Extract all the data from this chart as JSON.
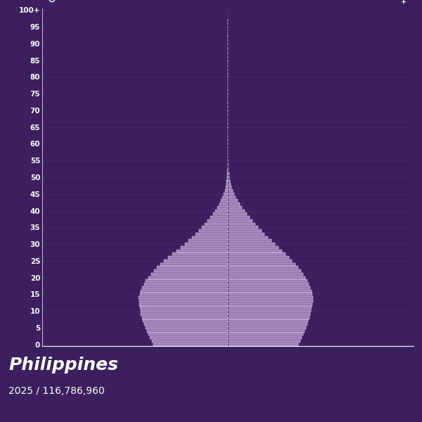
{
  "title": "Philippines",
  "subtitle": "2025 / 116,786,960",
  "bg_color": "#3b1f5e",
  "bar_color": "#9b7bb8",
  "bar_edge_color": "#ffffff",
  "center_line_color": "#4a2a6a",
  "grid_color": "#4a2a6a",
  "text_color": "#ffffff",
  "male_symbol": "♂",
  "female_symbol": "♀",
  "bar_height": 0.82,
  "xlim": 1400000,
  "age_labels": [
    "0",
    "5",
    "10",
    "15",
    "20",
    "25",
    "30",
    "35",
    "40",
    "45",
    "50",
    "55",
    "60",
    "65",
    "70",
    "75",
    "80",
    "85",
    "90",
    "95",
    "100+"
  ],
  "age_tick_positions": [
    0,
    5,
    10,
    15,
    20,
    25,
    30,
    35,
    40,
    45,
    50,
    55,
    60,
    65,
    70,
    75,
    80,
    85,
    90,
    95,
    100
  ],
  "male_values": [
    560000,
    575000,
    590000,
    600000,
    608000,
    620000,
    630000,
    640000,
    648000,
    655000,
    660000,
    665000,
    668000,
    670000,
    672000,
    665000,
    655000,
    645000,
    632000,
    618000,
    600000,
    580000,
    558000,
    534000,
    508000,
    480000,
    450000,
    420000,
    388000,
    355000,
    325000,
    297000,
    270000,
    244000,
    218000,
    195000,
    173000,
    152000,
    132000,
    113000,
    95000,
    79000,
    64000,
    51000,
    40000,
    31000,
    23000,
    17000,
    12000,
    8500,
    6000,
    4100,
    2800,
    1900,
    1300,
    900,
    620,
    430,
    300,
    210,
    150,
    105,
    74,
    52,
    37,
    27,
    20,
    15,
    11,
    8,
    6,
    4,
    3,
    2,
    2,
    1,
    1,
    1,
    1,
    1,
    1,
    1,
    1,
    1,
    1,
    1,
    1,
    1,
    1,
    1,
    1,
    1,
    1,
    1,
    1,
    1,
    1,
    1
  ],
  "female_values": [
    530000,
    545000,
    558000,
    570000,
    578000,
    588000,
    598000,
    607000,
    614000,
    621000,
    627000,
    632000,
    636000,
    640000,
    643000,
    638000,
    630000,
    622000,
    612000,
    600000,
    585000,
    568000,
    550000,
    530000,
    508000,
    485000,
    460000,
    434000,
    407000,
    380000,
    354000,
    328000,
    303000,
    278000,
    254000,
    230000,
    207000,
    185000,
    164000,
    144000,
    125000,
    107000,
    90000,
    74000,
    60000,
    48000,
    37000,
    28000,
    21000,
    15500,
    11500,
    8200,
    5900,
    4200,
    3000,
    2100,
    1500,
    1050,
    740,
    520,
    370,
    260,
    185,
    132,
    95,
    69,
    51,
    38,
    29,
    22,
    17,
    13,
    10,
    8,
    6,
    5,
    4,
    3,
    2,
    2,
    1,
    1,
    1,
    1,
    1,
    1,
    1,
    1,
    1,
    1,
    1,
    1,
    1,
    1,
    1,
    1,
    1,
    1
  ]
}
